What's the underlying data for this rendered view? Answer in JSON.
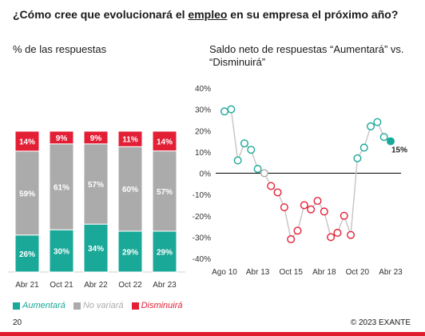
{
  "title": {
    "before": "¿Cómo cree que evolucionará el ",
    "emphasis": "empleo",
    "after": " en su empresa el próximo año?"
  },
  "colors": {
    "aumentara": "#1aa898",
    "no_variara": "#ababab",
    "disminuira": "#e31f36",
    "line": "#c8c8c8"
  },
  "chart_data": [
    {
      "type": "bar",
      "stacked": true,
      "title": "% de las respuestas",
      "categories": [
        "Abr 21",
        "Oct 21",
        "Abr 22",
        "Oct 22",
        "Abr 23"
      ],
      "series": [
        {
          "name": "Aumentará",
          "values": [
            26,
            30,
            34,
            29,
            29
          ],
          "labels": [
            "26%",
            "30%",
            "34%",
            "29%",
            "29%"
          ]
        },
        {
          "name": "No variará",
          "values": [
            59,
            61,
            57,
            60,
            57
          ],
          "labels": [
            "59%",
            "61%",
            "57%",
            "60%",
            "57%"
          ]
        },
        {
          "name": "Disminuirá",
          "values": [
            14,
            9,
            9,
            11,
            14
          ],
          "labels": [
            "14%",
            "9%",
            "9%",
            "11%",
            "14%"
          ]
        }
      ],
      "ylim": [
        0,
        100
      ],
      "legend": "bottom"
    },
    {
      "type": "line",
      "title": "Saldo neto de respuestas “Aumentará” vs. “Disminuirá”",
      "x_tick_labels": [
        "Ago 10",
        "Abr 13",
        "Oct 15",
        "Abr 18",
        "Oct 20",
        "Abr 23"
      ],
      "y_tick_labels": [
        "40%",
        "30%",
        "20%",
        "10%",
        "0%",
        "-10%",
        "-20%",
        "-30%",
        "-40%"
      ],
      "ylim": [
        -40,
        40
      ],
      "values": [
        29,
        30,
        6,
        14,
        11,
        2,
        0,
        -6,
        -9,
        -16,
        -31,
        -27,
        -15,
        -17,
        -13,
        -18,
        -30,
        -28,
        -20,
        -29,
        7,
        12,
        22,
        24,
        17,
        15
      ],
      "last_label": "15%"
    }
  ],
  "footer": {
    "page": "20",
    "copyright": "© 2023 EXANTE"
  }
}
